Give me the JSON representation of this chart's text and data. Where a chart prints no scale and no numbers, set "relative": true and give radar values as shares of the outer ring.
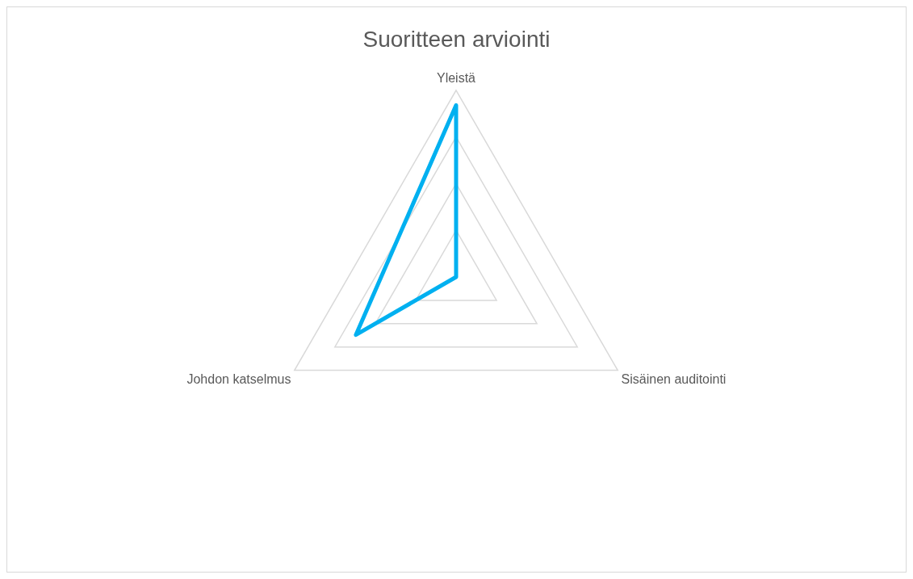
{
  "chart_data": {
    "type": "radar",
    "title": "Suoritteen arviointi",
    "categories": [
      "Yleistä",
      "Sisäinen auditointi",
      "Johdon katselmus"
    ],
    "relative": true,
    "legend": false,
    "grid": true,
    "marker": "none",
    "series": [
      {
        "color": "#00b0f0",
        "values": [
          0.92,
          0,
          0.62
        ]
      }
    ]
  }
}
